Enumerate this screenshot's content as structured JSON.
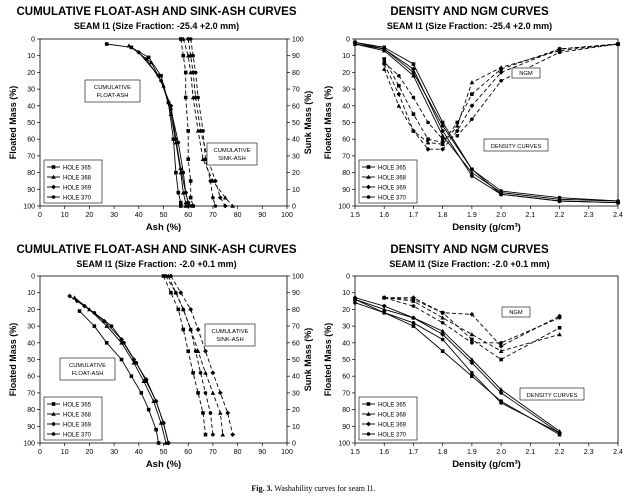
{
  "figure": {
    "caption_label": "Fig. 3.",
    "caption_text": "Washability curves for seam I1."
  },
  "chart_data": [
    {
      "type": "line",
      "title": "CUMULATIVE FLOAT-ASH AND SINK-ASH CURVES",
      "subtitle": "SEAM I1 (Size Fraction: -25.4 +2.0 mm)",
      "xlabel": "Ash (%)",
      "ylabel": "Floated Mass (%)",
      "y2label": "Sunk Mass (%)",
      "xlim": [
        0,
        100
      ],
      "ylim": [
        0,
        100
      ],
      "y_inverted": true,
      "y2lim": [
        0,
        100
      ],
      "x_ticks": [
        0,
        10,
        20,
        30,
        40,
        50,
        60,
        70,
        80,
        90,
        100
      ],
      "y_ticks": [
        0,
        10,
        20,
        30,
        40,
        50,
        60,
        70,
        80,
        90,
        100
      ],
      "y2_ticks": [
        100,
        90,
        80,
        70,
        60,
        50,
        40,
        30,
        20,
        10,
        0
      ],
      "grid": false,
      "legend": "bottom-left",
      "annotations": [
        {
          "text": "CUMULATIVE FLOAT-ASH",
          "x": 31,
          "y": 33
        },
        {
          "text": "CUMULATIVE SINK-ASH",
          "x": 72,
          "y": 68
        }
      ],
      "series": [
        {
          "name": "HOLE 365",
          "marker": "square",
          "style": "solid",
          "x": [
            27,
            37,
            44,
            49,
            52,
            54,
            55,
            56,
            57,
            57
          ],
          "y": [
            3,
            5,
            11,
            22,
            38,
            60,
            80,
            92,
            98,
            100
          ]
        },
        {
          "name": "HOLE 368",
          "marker": "triangle",
          "style": "solid",
          "x": [
            36,
            45,
            50,
            53,
            55,
            57,
            58,
            59,
            59
          ],
          "y": [
            4,
            14,
            28,
            45,
            62,
            80,
            92,
            98,
            100
          ]
        },
        {
          "name": "HOLE 369",
          "marker": "diamond",
          "style": "solid",
          "x": [
            40,
            48,
            53,
            55,
            57,
            59,
            60,
            60
          ],
          "y": [
            8,
            22,
            40,
            60,
            78,
            92,
            98,
            100
          ]
        },
        {
          "name": "HOLE 370",
          "marker": "circle",
          "style": "solid",
          "x": [
            43,
            49,
            53,
            56,
            58,
            59,
            60,
            61
          ],
          "y": [
            12,
            25,
            42,
            62,
            80,
            92,
            98,
            100
          ]
        },
        {
          "name": "HOLE 365 sink",
          "marker": "square",
          "style": "dashed",
          "x": [
            57,
            58,
            59,
            59,
            60,
            60,
            61,
            61,
            62
          ],
          "y": [
            0,
            10,
            20,
            35,
            55,
            72,
            85,
            95,
            100
          ]
        },
        {
          "name": "HOLE 368 sink",
          "marker": "triangle",
          "style": "dashed",
          "x": [
            58,
            60,
            61,
            62,
            64,
            66,
            70,
            75,
            78
          ],
          "y": [
            0,
            10,
            20,
            35,
            55,
            72,
            85,
            95,
            100
          ]
        },
        {
          "name": "HOLE 369 sink",
          "marker": "diamond",
          "style": "dashed",
          "x": [
            60,
            61,
            62,
            63,
            65,
            68,
            71,
            73,
            75
          ],
          "y": [
            0,
            10,
            20,
            35,
            55,
            72,
            85,
            95,
            100
          ]
        },
        {
          "name": "HOLE 370 sink",
          "marker": "circle",
          "style": "dashed",
          "x": [
            61,
            62,
            63,
            64,
            66,
            67,
            69,
            70,
            71
          ],
          "y": [
            0,
            10,
            20,
            35,
            55,
            72,
            85,
            95,
            100
          ]
        }
      ]
    },
    {
      "type": "line",
      "title": "DENSITY AND NGM CURVES",
      "subtitle": "SEAM I1 (Size Fraction: -25.4 +2.0 mm)",
      "xlabel": "Density (g/cm³)",
      "ylabel": "Floated Mass (%)",
      "xlim": [
        1.5,
        2.4
      ],
      "ylim": [
        0,
        100
      ],
      "y_inverted": true,
      "x_ticks": [
        "1.5",
        "1.6",
        "1.7",
        "1.8",
        "1.9",
        "2.0",
        "2.1",
        "2.2",
        "2.3",
        "2.4"
      ],
      "y_ticks": [
        0,
        10,
        20,
        30,
        40,
        50,
        60,
        70,
        80,
        90,
        100
      ],
      "grid": false,
      "legend": "bottom-left",
      "annotations": [
        {
          "text": "NGM",
          "x": 2.05,
          "y": 21
        },
        {
          "text": "DENSITY CURVES",
          "x": 1.98,
          "y": 64
        }
      ],
      "series": [
        {
          "name": "HOLE 365",
          "marker": "square",
          "style": "solid",
          "x": [
            1.5,
            1.6,
            1.7,
            1.8,
            1.9,
            2.0,
            2.2,
            2.4
          ],
          "y": [
            2,
            5,
            15,
            50,
            78,
            93,
            97,
            98
          ]
        },
        {
          "name": "HOLE 368",
          "marker": "triangle",
          "style": "solid",
          "x": [
            1.5,
            1.6,
            1.7,
            1.8,
            1.9,
            2.0,
            2.2,
            2.4
          ],
          "y": [
            3,
            7,
            22,
            58,
            80,
            92,
            96,
            97
          ]
        },
        {
          "name": "HOLE 369",
          "marker": "diamond",
          "style": "solid",
          "x": [
            1.5,
            1.6,
            1.7,
            1.8,
            1.9,
            2.0,
            2.2,
            2.4
          ],
          "y": [
            2,
            6,
            18,
            55,
            82,
            93,
            97,
            98
          ]
        },
        {
          "name": "HOLE 370",
          "marker": "circle",
          "style": "solid",
          "x": [
            1.5,
            1.6,
            1.7,
            1.8,
            1.9,
            2.0,
            2.2,
            2.4
          ],
          "y": [
            3,
            6,
            20,
            52,
            78,
            91,
            95,
            97
          ]
        },
        {
          "name": "HOLE 365 NGM",
          "marker": "square",
          "style": "dashed",
          "x": [
            1.6,
            1.65,
            1.7,
            1.75,
            1.8,
            1.85,
            1.9,
            2.0,
            2.2,
            2.4
          ],
          "y": [
            12,
            28,
            45,
            60,
            62,
            50,
            33,
            18,
            6,
            3
          ]
        },
        {
          "name": "HOLE 368 NGM",
          "marker": "triangle",
          "style": "dashed",
          "x": [
            1.6,
            1.65,
            1.7,
            1.75,
            1.8,
            1.85,
            1.9,
            2.0,
            2.2,
            2.4
          ],
          "y": [
            18,
            40,
            55,
            62,
            63,
            52,
            26,
            17,
            7,
            3
          ]
        },
        {
          "name": "HOLE 369 NGM",
          "marker": "diamond",
          "style": "dashed",
          "x": [
            1.6,
            1.65,
            1.7,
            1.75,
            1.8,
            1.85,
            1.9,
            2.0,
            2.2,
            2.4
          ],
          "y": [
            15,
            33,
            55,
            66,
            66,
            55,
            40,
            20,
            6,
            3
          ]
        },
        {
          "name": "HOLE 370 NGM",
          "marker": "circle",
          "style": "dashed",
          "x": [
            1.6,
            1.65,
            1.7,
            1.75,
            1.8,
            1.85,
            1.9,
            2.0,
            2.2,
            2.4
          ],
          "y": [
            14,
            22,
            35,
            50,
            60,
            58,
            48,
            25,
            8,
            3
          ]
        }
      ]
    },
    {
      "type": "line",
      "title": "CUMULATIVE FLOAT-ASH AND SINK-ASH CURVES",
      "subtitle": "SEAM I1 (Size Fraction: -2.0 +0.1 mm)",
      "xlabel": "Ash (%)",
      "ylabel": "Floated Mass (%)",
      "y2label": "Sunk Mass (%)",
      "xlim": [
        0,
        100
      ],
      "ylim": [
        0,
        100
      ],
      "y_inverted": true,
      "y2lim": [
        0,
        100
      ],
      "x_ticks": [
        0,
        10,
        20,
        30,
        40,
        50,
        60,
        70,
        80,
        90,
        100
      ],
      "y_ticks": [
        0,
        10,
        20,
        30,
        40,
        50,
        60,
        70,
        80,
        90,
        100
      ],
      "y2_ticks": [
        100,
        90,
        80,
        70,
        60,
        50,
        40,
        30,
        20,
        10,
        0
      ],
      "grid": false,
      "legend": "bottom-left",
      "annotations": [
        {
          "text": "CUMULATIVE FLOAT-ASH",
          "x": 22,
          "y": 56
        },
        {
          "text": "CUMULATIVE SINK-ASH",
          "x": 78,
          "y": 35
        }
      ],
      "series": [
        {
          "name": "HOLE 365",
          "marker": "square",
          "style": "solid",
          "x": [
            16,
            22,
            27,
            33,
            37,
            41,
            44,
            47,
            48
          ],
          "y": [
            21,
            30,
            40,
            50,
            60,
            70,
            80,
            92,
            100
          ]
        },
        {
          "name": "HOLE 368",
          "marker": "triangle",
          "style": "solid",
          "x": [
            14,
            20,
            27,
            33,
            38,
            42,
            46,
            49,
            51
          ],
          "y": [
            13,
            20,
            30,
            40,
            52,
            63,
            75,
            88,
            100
          ]
        },
        {
          "name": "HOLE 369",
          "marker": "diamond",
          "style": "solid",
          "x": [
            12,
            18,
            26,
            33,
            38,
            43,
            47,
            50,
            52
          ],
          "y": [
            12,
            18,
            27,
            38,
            50,
            62,
            75,
            88,
            100
          ]
        },
        {
          "name": "HOLE 370",
          "marker": "circle",
          "style": "solid",
          "x": [
            15,
            22,
            29,
            34,
            39,
            43,
            47,
            50,
            52
          ],
          "y": [
            15,
            22,
            30,
            40,
            52,
            63,
            75,
            88,
            100
          ]
        },
        {
          "name": "HOLE 365 sink",
          "marker": "square",
          "style": "dashed",
          "x": [
            50,
            53,
            56,
            58,
            60,
            62,
            64,
            66,
            67
          ],
          "y": [
            0,
            10,
            20,
            32,
            45,
            58,
            70,
            82,
            95
          ]
        },
        {
          "name": "HOLE 368 sink",
          "marker": "triangle",
          "style": "dashed",
          "x": [
            52,
            55,
            58,
            61,
            64,
            67,
            70,
            73,
            74
          ],
          "y": [
            0,
            10,
            20,
            32,
            45,
            58,
            70,
            82,
            95
          ]
        },
        {
          "name": "HOLE 369 sink",
          "marker": "diamond",
          "style": "dashed",
          "x": [
            53,
            57,
            61,
            64,
            67,
            70,
            73,
            76,
            78
          ],
          "y": [
            0,
            10,
            20,
            32,
            45,
            58,
            70,
            82,
            95
          ]
        },
        {
          "name": "HOLE 370 sink",
          "marker": "circle",
          "style": "dashed",
          "x": [
            51,
            55,
            58,
            61,
            63,
            65,
            67,
            69,
            70
          ],
          "y": [
            0,
            10,
            20,
            32,
            45,
            58,
            70,
            82,
            95
          ]
        }
      ]
    },
    {
      "type": "line",
      "title": "DENSITY AND NGM CURVES",
      "subtitle": "SEAM I1 (Size Fraction: -2.0 +0.1 mm)",
      "xlabel": "Density (g/cm³)",
      "ylabel": "Floated Mass (%)",
      "xlim": [
        1.5,
        2.4
      ],
      "ylim": [
        0,
        100
      ],
      "y_inverted": true,
      "x_ticks": [
        "1.5",
        "1.6",
        "1.7",
        "1.8",
        "1.9",
        "2.0",
        "2.1",
        "2.2",
        "2.3",
        "2.4"
      ],
      "y_ticks": [
        0,
        10,
        20,
        30,
        40,
        50,
        60,
        70,
        80,
        90,
        100
      ],
      "grid": false,
      "legend": "bottom-left",
      "annotations": [
        {
          "text": "NGM",
          "x": 2.08,
          "y": 22
        },
        {
          "text": "DENSITY CURVES",
          "x": 2.15,
          "y": 72
        }
      ],
      "series": [
        {
          "name": "HOLE 365",
          "marker": "square",
          "style": "solid",
          "x": [
            1.5,
            1.6,
            1.7,
            1.8,
            1.9,
            2.0,
            2.2
          ],
          "y": [
            14,
            22,
            30,
            45,
            60,
            75,
            95
          ]
        },
        {
          "name": "HOLE 368",
          "marker": "triangle",
          "style": "solid",
          "x": [
            1.5,
            1.6,
            1.7,
            1.8,
            1.9,
            2.0,
            2.2
          ],
          "y": [
            14,
            20,
            25,
            33,
            50,
            68,
            93
          ]
        },
        {
          "name": "HOLE 369",
          "marker": "diamond",
          "style": "solid",
          "x": [
            1.5,
            1.6,
            1.7,
            1.8,
            1.9,
            2.0,
            2.2
          ],
          "y": [
            13,
            18,
            25,
            35,
            52,
            70,
            94
          ]
        },
        {
          "name": "HOLE 370",
          "marker": "circle",
          "style": "solid",
          "x": [
            1.5,
            1.6,
            1.7,
            1.8,
            1.9,
            2.0,
            2.2
          ],
          "y": [
            16,
            22,
            28,
            38,
            58,
            76,
            94
          ]
        },
        {
          "name": "HOLE 365 NGM",
          "marker": "square",
          "style": "dashed",
          "x": [
            1.6,
            1.7,
            1.8,
            1.9,
            2.0,
            2.2
          ],
          "y": [
            13,
            14,
            22,
            38,
            50,
            31
          ]
        },
        {
          "name": "HOLE 368 NGM",
          "marker": "triangle",
          "style": "dashed",
          "x": [
            1.6,
            1.7,
            1.8,
            1.9,
            2.0,
            2.2
          ],
          "y": [
            13,
            15,
            25,
            35,
            45,
            35
          ]
        },
        {
          "name": "HOLE 369 NGM",
          "marker": "diamond",
          "style": "dashed",
          "x": [
            1.6,
            1.7,
            1.8,
            1.9,
            2.0,
            2.2
          ],
          "y": [
            13,
            13,
            22,
            23,
            42,
            24
          ]
        },
        {
          "name": "HOLE 370 NGM",
          "marker": "circle",
          "style": "dashed",
          "x": [
            1.6,
            1.7,
            1.8,
            1.9,
            2.0,
            2.2
          ],
          "y": [
            13,
            18,
            28,
            40,
            40,
            25
          ]
        }
      ]
    }
  ]
}
